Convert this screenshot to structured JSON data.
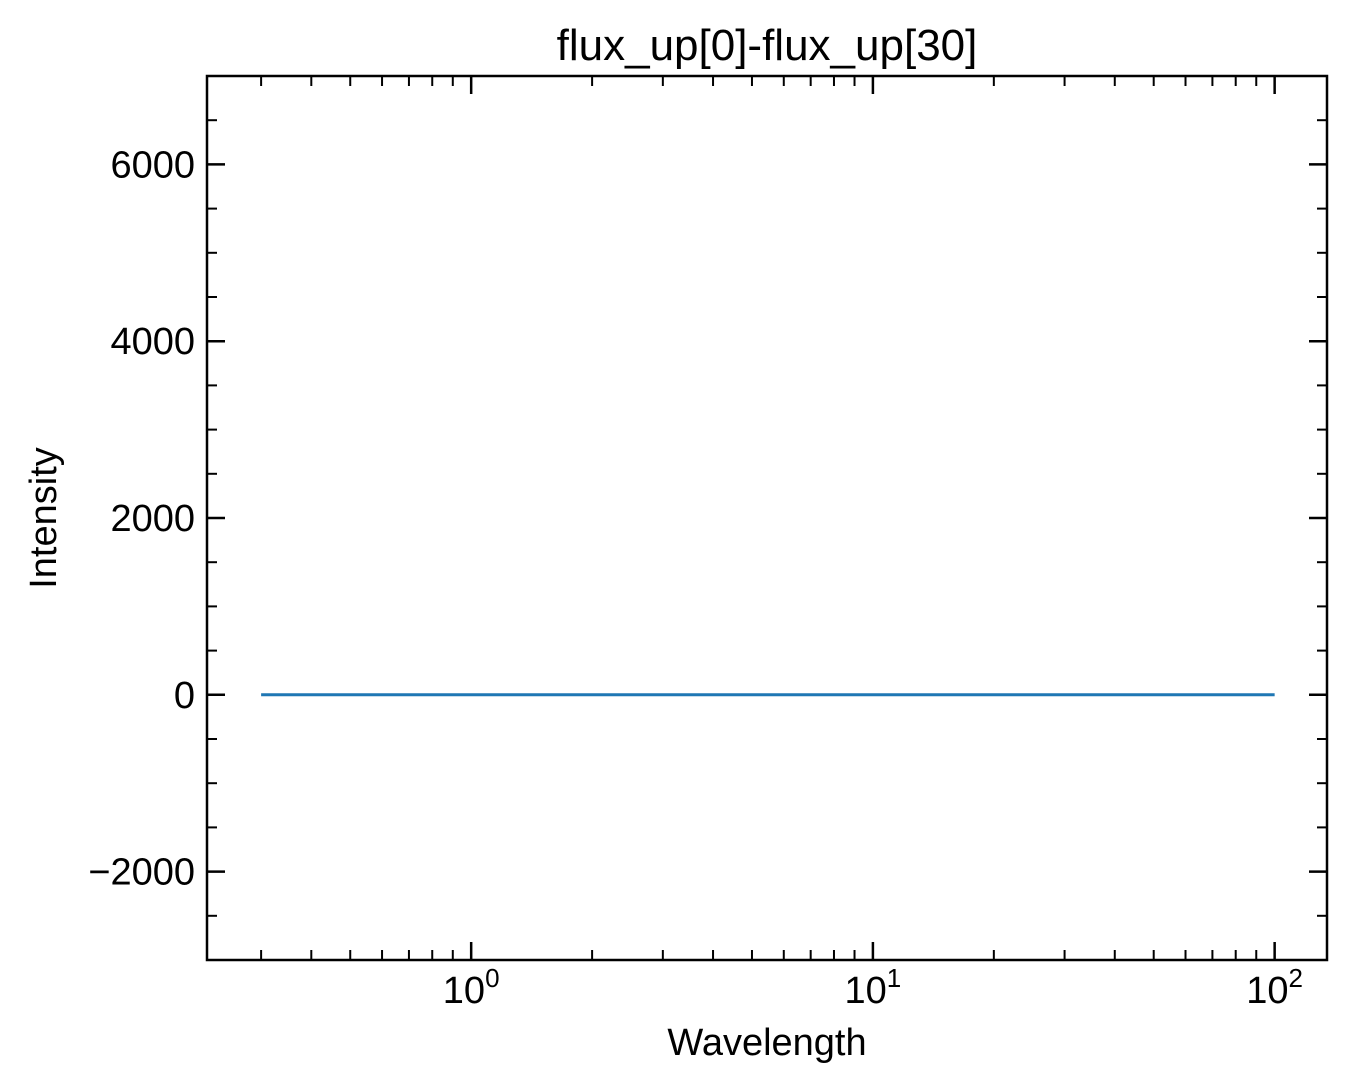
{
  "chart_data": {
    "type": "line",
    "title": "flux_up[0]-flux_up[30]",
    "xlabel": "Wavelength",
    "ylabel": "Intensity",
    "xscale": "log",
    "xlim": [
      0.22,
      135
    ],
    "ylim": [
      -3000,
      7000
    ],
    "grid": false,
    "line_color": "#1f77b4",
    "x_ticks": [
      {
        "value": 1,
        "base": "10",
        "exp": "0"
      },
      {
        "value": 10,
        "base": "10",
        "exp": "1"
      },
      {
        "value": 100,
        "base": "10",
        "exp": "2"
      }
    ],
    "y_ticks": [
      {
        "value": -2000,
        "label": "−2000"
      },
      {
        "value": 0,
        "label": "0"
      },
      {
        "value": 2000,
        "label": "2000"
      },
      {
        "value": 4000,
        "label": "4000"
      },
      {
        "value": 6000,
        "label": "6000"
      }
    ],
    "series": [
      {
        "x": [
          0.3,
          0.5,
          1.0,
          1.2,
          1.5,
          2.0,
          3.0,
          5.0,
          10.0,
          30.0,
          100.0
        ],
        "y": [
          0,
          0,
          0,
          0,
          0,
          0,
          0,
          0,
          0,
          0,
          0
        ]
      }
    ]
  }
}
